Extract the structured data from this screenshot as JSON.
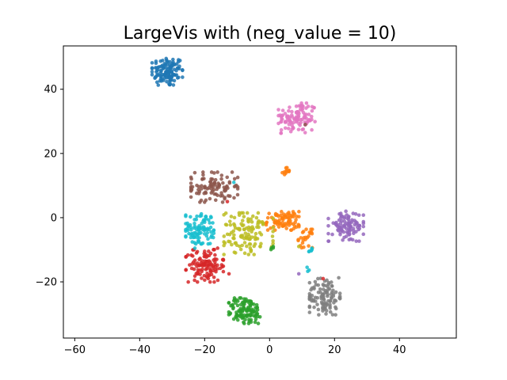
{
  "chart_data": {
    "type": "scatter",
    "title": "LargeVis with (neg_value = 10)",
    "xlabel": "",
    "ylabel": "",
    "xlim": [
      -63.5,
      57.5
    ],
    "ylim": [
      -37.5,
      53.5
    ],
    "xticks": [
      -60,
      -40,
      -20,
      0,
      20,
      40
    ],
    "yticks": [
      -20,
      0,
      20,
      40
    ],
    "grid": false,
    "legend": "none",
    "clusters": [
      {
        "color": "#1f77b4",
        "center": [
          -31.5,
          45.5
        ],
        "spread": [
          2.6,
          2.4
        ],
        "count": 120
      },
      {
        "color": "#e377c2",
        "center": [
          8.5,
          31.0
        ],
        "spread": [
          3.2,
          2.6
        ],
        "count": 110
      },
      {
        "color": "#ff7f0e",
        "center": [
          5.0,
          14.5
        ],
        "spread": [
          0.6,
          0.6
        ],
        "count": 12
      },
      {
        "color": "#8c564b",
        "center": [
          -17.0,
          9.5
        ],
        "spread": [
          4.0,
          2.6
        ],
        "count": 100
      },
      {
        "color": "#ff7f0e",
        "center": [
          4.0,
          -1.0
        ],
        "spread": [
          2.8,
          1.6
        ],
        "count": 80
      },
      {
        "color": "#ff7f0e",
        "center": [
          11.0,
          -6.5
        ],
        "spread": [
          1.2,
          1.6
        ],
        "count": 25
      },
      {
        "color": "#bcbd22",
        "center": [
          -6.5,
          -5.0
        ],
        "spread": [
          4.2,
          3.6
        ],
        "count": 120
      },
      {
        "color": "#17becf",
        "center": [
          -21.5,
          -3.5
        ],
        "spread": [
          2.4,
          2.6
        ],
        "count": 95
      },
      {
        "color": "#9467bd",
        "center": [
          23.5,
          -3.0
        ],
        "spread": [
          3.0,
          2.4
        ],
        "count": 95
      },
      {
        "color": "#d62728",
        "center": [
          -20.0,
          -15.0
        ],
        "spread": [
          3.2,
          2.8
        ],
        "count": 115
      },
      {
        "color": "#7f7f7f",
        "center": [
          17.0,
          -24.5
        ],
        "spread": [
          2.6,
          3.2
        ],
        "count": 110
      },
      {
        "color": "#2ca02c",
        "center": [
          -7.5,
          -29.0
        ],
        "spread": [
          2.8,
          2.2
        ],
        "count": 115
      },
      {
        "color": "#17becf",
        "center": [
          13.0,
          -10.5
        ],
        "spread": [
          0.5,
          0.6
        ],
        "count": 6
      },
      {
        "color": "#17becf",
        "center": [
          12.0,
          -16.0
        ],
        "spread": [
          0.4,
          0.4
        ],
        "count": 3
      },
      {
        "color": "#2ca02c",
        "center": [
          1.0,
          -9.5
        ],
        "spread": [
          0.4,
          0.3
        ],
        "count": 4
      }
    ],
    "outliers": [
      {
        "color": "#17becf",
        "x": -11.0,
        "y": 11.0
      },
      {
        "color": "#d62728",
        "x": -13.0,
        "y": 5.0
      },
      {
        "color": "#d62728",
        "x": -16.0,
        "y": -9.5
      },
      {
        "color": "#d62728",
        "x": -12.5,
        "y": -17.5
      },
      {
        "color": "#17becf",
        "x": -23.0,
        "y": -9.5
      },
      {
        "color": "#9467bd",
        "x": 23.5,
        "y": 2.0
      },
      {
        "color": "#9467bd",
        "x": 9.0,
        "y": -17.5
      },
      {
        "color": "#d62728",
        "x": 16.5,
        "y": -19.0
      },
      {
        "color": "#bcbd22",
        "x": 9.0,
        "y": -9.0
      },
      {
        "color": "#8c564b",
        "x": 11.0,
        "y": 29.0
      }
    ]
  }
}
